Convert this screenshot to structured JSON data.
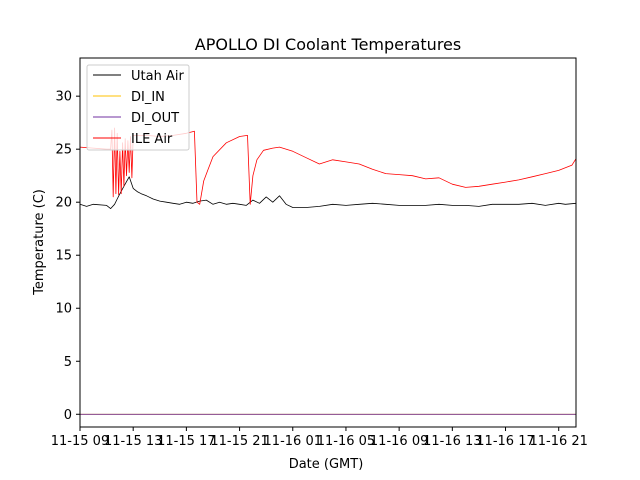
{
  "chart_data": {
    "type": "line",
    "title": "APOLLO DI Coolant Temperatures",
    "xlabel": "Date (GMT)",
    "ylabel": "Temperature (C)",
    "xlim": [
      9.0,
      46.3
    ],
    "ylim": [
      -1.2,
      33.6
    ],
    "x_unit": "hours since 2015-11-15 00:00 GMT",
    "x_ticks": [
      {
        "value": 9,
        "label": "11-15 09"
      },
      {
        "value": 13,
        "label": "11-15 13"
      },
      {
        "value": 17,
        "label": "11-15 17"
      },
      {
        "value": 21,
        "label": "11-15 21"
      },
      {
        "value": 25,
        "label": "11-16 01"
      },
      {
        "value": 29,
        "label": "11-16 05"
      },
      {
        "value": 33,
        "label": "11-16 09"
      },
      {
        "value": 37,
        "label": "11-16 13"
      },
      {
        "value": 41,
        "label": "11-16 17"
      },
      {
        "value": 45,
        "label": "11-16 21"
      }
    ],
    "y_ticks": [
      {
        "value": 0,
        "label": "0"
      },
      {
        "value": 5,
        "label": "5"
      },
      {
        "value": 10,
        "label": "10"
      },
      {
        "value": 15,
        "label": "15"
      },
      {
        "value": 20,
        "label": "20"
      },
      {
        "value": 25,
        "label": "25"
      },
      {
        "value": 30,
        "label": "30"
      }
    ],
    "grid": false,
    "legend_position": "top-left",
    "series": [
      {
        "name": "Utah Air",
        "color": "#000000",
        "x": [
          9.0,
          9.5,
          10.0,
          11.0,
          11.3,
          11.6,
          11.8,
          12.0,
          12.3,
          12.7,
          13.0,
          13.3,
          13.6,
          14.0,
          14.5,
          15.0,
          15.5,
          16.0,
          16.5,
          17.0,
          17.5,
          18.0,
          18.5,
          19.0,
          19.5,
          20.0,
          20.5,
          21.0,
          21.5,
          22.0,
          22.5,
          23.0,
          23.5,
          24.0,
          24.5,
          25.0,
          26.0,
          27.0,
          28.0,
          29.0,
          30.0,
          31.0,
          32.0,
          33.0,
          34.0,
          35.0,
          36.0,
          37.0,
          38.0,
          39.0,
          40.0,
          41.0,
          42.0,
          43.0,
          44.0,
          45.0,
          45.5,
          46.3
        ],
        "y": [
          19.8,
          19.6,
          19.8,
          19.7,
          19.4,
          19.8,
          20.3,
          20.8,
          21.5,
          22.4,
          21.3,
          21.0,
          20.8,
          20.6,
          20.3,
          20.1,
          20.0,
          19.9,
          19.8,
          20.0,
          19.9,
          20.1,
          20.2,
          19.8,
          20.0,
          19.8,
          19.9,
          19.8,
          19.7,
          20.2,
          19.9,
          20.5,
          20.0,
          20.6,
          19.8,
          19.5,
          19.5,
          19.6,
          19.8,
          19.7,
          19.8,
          19.9,
          19.8,
          19.7,
          19.7,
          19.7,
          19.8,
          19.7,
          19.7,
          19.6,
          19.8,
          19.8,
          19.8,
          19.9,
          19.7,
          19.9,
          19.8,
          19.9
        ]
      },
      {
        "name": "DI_IN",
        "color": "#ffc000",
        "x": [
          9.0,
          46.3
        ],
        "y": [
          0.0,
          0.0
        ]
      },
      {
        "name": "DI_OUT",
        "color": "#7030a0",
        "x": [
          9.0,
          46.3
        ],
        "y": [
          0.0,
          0.0
        ]
      },
      {
        "name": "ILE Air",
        "color": "#ff0000",
        "x": [
          9.0,
          10.0,
          11.0,
          11.3,
          11.4,
          11.5,
          11.6,
          11.7,
          11.8,
          11.9,
          12.0,
          12.1,
          12.2,
          12.3,
          12.4,
          12.5,
          12.6,
          12.7,
          12.8,
          12.9,
          13.0,
          14.0,
          15.0,
          16.0,
          17.0,
          17.6,
          17.8,
          18.0,
          18.3,
          18.6,
          19.0,
          20.0,
          21.0,
          21.6,
          21.8,
          22.0,
          22.3,
          22.8,
          23.5,
          24.0,
          25.0,
          26.0,
          27.0,
          28.0,
          29.0,
          30.0,
          31.0,
          32.0,
          33.0,
          34.0,
          35.0,
          36.0,
          37.0,
          38.0,
          39.0,
          40.0,
          41.0,
          42.0,
          43.0,
          44.0,
          45.0,
          46.0,
          46.3
        ],
        "y": [
          25.2,
          25.1,
          25.0,
          25.0,
          26.8,
          20.5,
          27.0,
          20.8,
          26.5,
          20.7,
          24.8,
          20.8,
          25.6,
          21.5,
          26.0,
          22.5,
          25.8,
          22.8,
          26.2,
          22.3,
          26.3,
          26.3,
          26.2,
          26.3,
          26.5,
          26.7,
          20.0,
          19.8,
          22.0,
          23.0,
          24.3,
          25.6,
          26.2,
          26.3,
          19.8,
          22.5,
          24.0,
          24.9,
          25.1,
          25.2,
          24.8,
          24.2,
          23.6,
          24.0,
          23.8,
          23.6,
          23.1,
          22.7,
          22.6,
          22.5,
          22.2,
          22.3,
          21.7,
          21.4,
          21.5,
          21.7,
          21.9,
          22.1,
          22.4,
          22.7,
          23.0,
          23.5,
          24.1
        ]
      }
    ]
  }
}
